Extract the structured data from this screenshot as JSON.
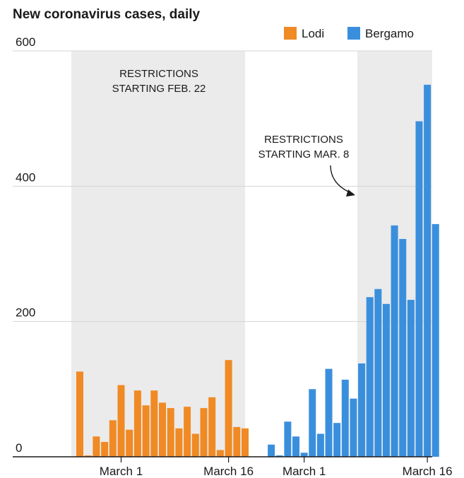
{
  "chart_data": {
    "type": "bar",
    "title": "New coronavirus cases, daily",
    "ylim": [
      0,
      600
    ],
    "yticks": [
      "0",
      "200",
      "400",
      "600"
    ],
    "grid": true,
    "legend_position": "top-right",
    "legend": [
      {
        "name": "Lodi",
        "color": "#f08a24"
      },
      {
        "name": "Bergamo",
        "color": "#3a8fdd"
      }
    ],
    "series": [
      {
        "name": "Lodi",
        "color": "#f08a24",
        "values": [
          126,
          2,
          30,
          22,
          54,
          106,
          40,
          98,
          76,
          98,
          80,
          72,
          42,
          74,
          34,
          72,
          88,
          10,
          143,
          44,
          42
        ],
        "xticks": [
          "March 1",
          "March 16"
        ],
        "restrictions_start_index": 0
      },
      {
        "name": "Bergamo",
        "color": "#3a8fdd",
        "values": [
          0,
          18,
          2,
          52,
          30,
          6,
          100,
          34,
          130,
          50,
          114,
          86,
          138,
          236,
          248,
          226,
          342,
          322,
          232,
          496,
          550,
          344
        ],
        "xticks": [
          "March 1",
          "March 16"
        ],
        "restrictions_start_index": 13
      }
    ],
    "annotations": [
      {
        "text_line1": "RESTRICTIONS",
        "text_line2": "STARTING FEB. 22"
      },
      {
        "text_line1": "RESTRICTIONS",
        "text_line2": "STARTING MAR. 8"
      }
    ]
  }
}
